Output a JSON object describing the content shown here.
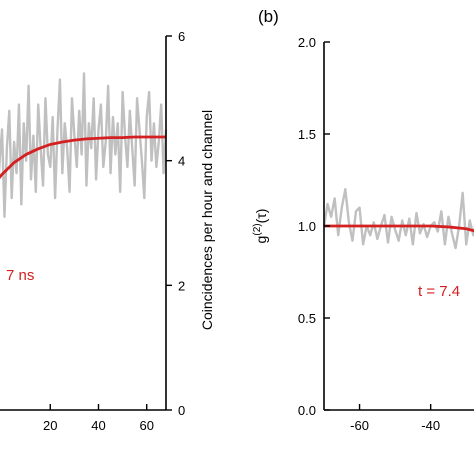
{
  "colors": {
    "data": "#c0c0c0",
    "fit": "#d42020",
    "annotation": "#d42020",
    "axes": "#000000"
  },
  "chart_data": [
    {
      "type": "line",
      "panel_label": "",
      "xlabel": "",
      "ylabel_right": "Coincidences per hour and channel",
      "xlim": [
        -5,
        68
      ],
      "ylim_right": [
        0,
        6
      ],
      "x_ticks": [
        "20",
        "40",
        "60"
      ],
      "x_tick_values": [
        20,
        40,
        60
      ],
      "y_ticks_right": [
        "0",
        "2",
        "4",
        "6"
      ],
      "y_tick_values_right": [
        0,
        2,
        4,
        6
      ],
      "annotation": "7 ns",
      "series": [
        {
          "role": "measured",
          "x": [
            -5,
            -4,
            -3,
            -2,
            -1,
            0,
            1,
            2,
            3,
            4,
            5,
            6,
            7,
            8,
            9,
            10,
            11,
            12,
            13,
            14,
            15,
            16,
            17,
            18,
            19,
            20,
            21,
            22,
            23,
            24,
            25,
            26,
            27,
            28,
            29,
            30,
            31,
            32,
            33,
            34,
            35,
            36,
            37,
            38,
            39,
            40,
            41,
            42,
            43,
            44,
            45,
            46,
            47,
            48,
            49,
            50,
            51,
            52,
            53,
            54,
            55,
            56,
            57,
            58,
            59,
            60,
            61,
            62,
            63,
            64,
            65,
            66,
            67,
            68
          ],
          "y": [
            4.6,
            4.1,
            3.6,
            3.3,
            4.0,
            4.5,
            3.1,
            4.2,
            4.8,
            3.4,
            4.3,
            3.8,
            4.9,
            3.3,
            4.6,
            4.0,
            5.2,
            3.7,
            4.4,
            3.5,
            4.9,
            4.2,
            3.6,
            5.0,
            4.1,
            3.9,
            4.7,
            3.4,
            4.5,
            5.3,
            3.8,
            4.6,
            4.2,
            3.5,
            5.0,
            4.4,
            3.9,
            4.8,
            4.1,
            5.4,
            3.6,
            4.6,
            4.2,
            5.0,
            3.7,
            4.5,
            4.9,
            3.9,
            4.3,
            5.2,
            3.8,
            4.7,
            4.1,
            4.6,
            3.5,
            5.1,
            4.4,
            3.9,
            4.8,
            4.2,
            3.6,
            5.0,
            4.5,
            4.0,
            3.4,
            4.7,
            5.1,
            4.0,
            4.6,
            3.9,
            4.3,
            4.9,
            3.8,
            4.5
          ]
        },
        {
          "role": "fit",
          "x": [
            -5,
            0,
            5,
            10,
            15,
            20,
            25,
            30,
            35,
            40,
            45,
            50,
            55,
            60,
            65,
            68
          ],
          "y": [
            3.55,
            3.78,
            3.97,
            4.1,
            4.19,
            4.26,
            4.3,
            4.33,
            4.35,
            4.36,
            4.37,
            4.37,
            4.38,
            4.38,
            4.38,
            4.38
          ]
        }
      ]
    },
    {
      "type": "line",
      "panel_label": "(b)",
      "xlabel": "",
      "ylabel": "g(2)(τ)",
      "ylabel_main": "g",
      "ylabel_super": "(2)",
      "ylabel_tail": "(τ)",
      "xlim": [
        -70,
        -25
      ],
      "ylim": [
        0.0,
        2.0
      ],
      "x_ticks": [
        "-60",
        "-40"
      ],
      "x_tick_values": [
        -60,
        -40
      ],
      "y_ticks": [
        "0.0",
        "0.5",
        "1.0",
        "1.5",
        "2.0"
      ],
      "y_tick_values": [
        0.0,
        0.5,
        1.0,
        1.5,
        2.0
      ],
      "annotation": "t = 7.4",
      "series": [
        {
          "role": "measured",
          "x": [
            -70,
            -69,
            -68,
            -67,
            -66,
            -65,
            -64,
            -63,
            -62,
            -61,
            -60,
            -59,
            -58,
            -57,
            -56,
            -55,
            -54,
            -53,
            -52,
            -51,
            -50,
            -49,
            -48,
            -47,
            -46,
            -45,
            -44,
            -43,
            -42,
            -41,
            -40,
            -39,
            -38,
            -37,
            -36,
            -35,
            -34,
            -33,
            -32,
            -31,
            -30,
            -29,
            -28,
            -27
          ],
          "y": [
            1.0,
            1.12,
            1.05,
            1.15,
            0.95,
            1.1,
            1.2,
            1.02,
            0.92,
            1.08,
            1.1,
            0.9,
            1.0,
            0.95,
            1.02,
            0.93,
            1.0,
            1.06,
            0.91,
            1.05,
            0.98,
            0.92,
            1.03,
            0.95,
            1.04,
            0.9,
            1.07,
            0.96,
            1.01,
            0.94,
            1.0,
            1.02,
            0.97,
            1.08,
            0.9,
            1.05,
            0.96,
            0.88,
            1.0,
            1.18,
            0.9,
            1.03,
            0.95,
            1.05
          ]
        },
        {
          "role": "fit",
          "x": [
            -70,
            -60,
            -50,
            -40,
            -35,
            -30,
            -27
          ],
          "y": [
            1.0,
            1.0,
            1.0,
            1.0,
            0.995,
            0.985,
            0.97
          ]
        }
      ]
    }
  ]
}
